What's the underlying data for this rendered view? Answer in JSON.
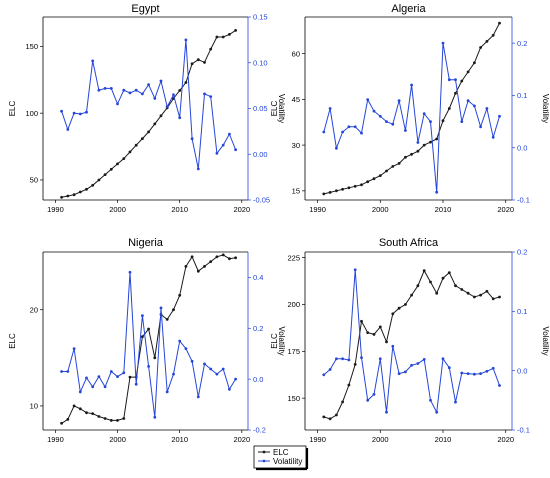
{
  "colors": {
    "elc": "#1a1a1a",
    "volatility": "#2646d9",
    "axis": "#000000"
  },
  "legend": {
    "position": "bottom-center",
    "items": [
      {
        "label": "ELC",
        "color": "#1a1a1a"
      },
      {
        "label": "Volatility",
        "color": "#2646d9"
      }
    ]
  },
  "chart_data": [
    {
      "type": "line",
      "title": "Egypt",
      "ylabel": "ELC",
      "y2label": "Volatility",
      "xlim": [
        1988,
        2021
      ],
      "xticks": [
        1990,
        2000,
        2010,
        2020
      ],
      "ylim": [
        35,
        172
      ],
      "yticks": [
        50,
        100,
        150
      ],
      "y2lim": [
        -0.05,
        0.15
      ],
      "y2ticks": [
        -0.05,
        0.0,
        0.05,
        0.1,
        0.15
      ],
      "y2ticklabels": [
        "-0.05",
        "0.00",
        "0.05",
        "0.10",
        "0.15"
      ],
      "x": [
        1991,
        1992,
        1993,
        1994,
        1995,
        1996,
        1997,
        1998,
        1999,
        2000,
        2001,
        2002,
        2003,
        2004,
        2005,
        2006,
        2007,
        2008,
        2009,
        2010,
        2011,
        2012,
        2013,
        2014,
        2015,
        2016,
        2017,
        2018,
        2019
      ],
      "series": [
        {
          "name": "ELC",
          "axis": "left",
          "values": [
            37,
            38,
            39,
            41,
            43,
            46,
            50,
            54,
            58,
            62,
            66,
            71,
            76,
            81,
            86,
            92,
            98,
            104,
            111,
            117,
            123,
            137,
            140,
            138,
            148,
            157,
            157,
            159,
            162
          ]
        },
        {
          "name": "Volatility",
          "axis": "right",
          "values": [
            0.047,
            0.027,
            0.045,
            0.044,
            0.046,
            0.102,
            0.07,
            0.072,
            0.072,
            0.055,
            0.07,
            0.067,
            0.07,
            0.066,
            0.076,
            0.061,
            0.08,
            0.052,
            0.065,
            0.04,
            0.125,
            0.017,
            -0.016,
            0.066,
            0.063,
            0.001,
            0.01,
            0.022,
            0.005
          ]
        }
      ]
    },
    {
      "type": "line",
      "title": "Algeria",
      "ylabel": "ELC",
      "y2label": "Volatility",
      "xlim": [
        1988,
        2021
      ],
      "xticks": [
        1990,
        2000,
        2010,
        2020
      ],
      "ylim": [
        12,
        72
      ],
      "yticks": [
        15,
        30,
        45,
        60
      ],
      "y2lim": [
        -0.1,
        0.25
      ],
      "y2ticks": [
        -0.1,
        0.0,
        0.1,
        0.2
      ],
      "y2ticklabels": [
        "-0.1",
        "0.0",
        "0.1",
        "0.2"
      ],
      "x": [
        1991,
        1992,
        1993,
        1994,
        1995,
        1996,
        1997,
        1998,
        1999,
        2000,
        2001,
        2002,
        2003,
        2004,
        2005,
        2006,
        2007,
        2008,
        2009,
        2010,
        2011,
        2012,
        2013,
        2014,
        2015,
        2016,
        2017,
        2018,
        2019
      ],
      "series": [
        {
          "name": "ELC",
          "axis": "left",
          "values": [
            14,
            14.5,
            15,
            15.5,
            16,
            16.5,
            17,
            18,
            19,
            20,
            21.5,
            23,
            24,
            26,
            27,
            28,
            30,
            31,
            32,
            38,
            42,
            47,
            51,
            54,
            57,
            62,
            64,
            66,
            70
          ]
        },
        {
          "name": "Volatility",
          "axis": "right",
          "values": [
            0.03,
            0.075,
            -0.001,
            0.03,
            0.04,
            0.04,
            0.028,
            0.092,
            0.07,
            0.06,
            0.05,
            0.045,
            0.09,
            0.033,
            0.12,
            0.01,
            0.065,
            0.05,
            -0.085,
            0.2,
            0.13,
            0.13,
            0.05,
            0.09,
            0.08,
            0.04,
            0.075,
            0.02,
            0.06
          ]
        }
      ]
    },
    {
      "type": "line",
      "title": "Nigeria",
      "ylabel": "ELC",
      "y2label": "Volatility",
      "xlim": [
        1988,
        2021
      ],
      "xticks": [
        1990,
        2000,
        2010,
        2020
      ],
      "ylim": [
        7.5,
        26
      ],
      "yticks": [
        10,
        20
      ],
      "y2lim": [
        -0.2,
        0.5
      ],
      "y2ticks": [
        -0.2,
        0.0,
        0.2,
        0.4
      ],
      "y2ticklabels": [
        "-0.2",
        "0.0",
        "0.2",
        "0.4"
      ],
      "x": [
        1991,
        1992,
        1993,
        1994,
        1995,
        1996,
        1997,
        1998,
        1999,
        2000,
        2001,
        2002,
        2003,
        2004,
        2005,
        2006,
        2007,
        2008,
        2009,
        2010,
        2011,
        2012,
        2013,
        2014,
        2015,
        2016,
        2017,
        2018,
        2019
      ],
      "series": [
        {
          "name": "ELC",
          "axis": "left",
          "values": [
            8.2,
            8.6,
            10,
            9.7,
            9.3,
            9.2,
            8.9,
            8.7,
            8.5,
            8.5,
            8.7,
            13,
            13,
            17.2,
            18,
            15,
            19.5,
            19,
            20,
            21.5,
            24.5,
            25.5,
            24,
            24.5,
            25,
            25.5,
            25.7,
            25.3,
            25.4
          ]
        },
        {
          "name": "Volatility",
          "axis": "right",
          "values": [
            0.03,
            0.03,
            0.12,
            -0.05,
            0.005,
            -0.03,
            0.01,
            -0.03,
            0.03,
            0.01,
            0.025,
            0.42,
            -0.02,
            0.25,
            0.05,
            -0.15,
            0.28,
            -0.05,
            0.02,
            0.15,
            0.12,
            0.07,
            -0.07,
            0.06,
            0.04,
            0.02,
            0.04,
            -0.04,
            0.0
          ]
        }
      ]
    },
    {
      "type": "line",
      "title": "South Africa",
      "ylabel": "ELC",
      "y2label": "Volatility",
      "xlim": [
        1988,
        2021
      ],
      "xticks": [
        1990,
        2000,
        2010,
        2020
      ],
      "ylim": [
        133,
        228
      ],
      "yticks": [
        150,
        175,
        200,
        225
      ],
      "y2lim": [
        -0.1,
        0.2
      ],
      "y2ticks": [
        -0.1,
        0.0,
        0.1,
        0.2
      ],
      "y2ticklabels": [
        "-0.1",
        "0.0",
        "0.1",
        "0.2"
      ],
      "x": [
        1991,
        1992,
        1993,
        1994,
        1995,
        1996,
        1997,
        1998,
        1999,
        2000,
        2001,
        2002,
        2003,
        2004,
        2005,
        2006,
        2007,
        2008,
        2009,
        2010,
        2011,
        2012,
        2013,
        2014,
        2015,
        2016,
        2017,
        2018,
        2019
      ],
      "series": [
        {
          "name": "ELC",
          "axis": "left",
          "values": [
            140,
            139,
            141,
            148,
            157,
            168,
            191,
            185,
            184,
            188,
            180,
            195,
            198,
            200,
            205,
            210,
            218,
            212,
            206,
            214,
            217,
            210,
            208,
            206,
            204,
            205,
            207,
            203,
            204
          ]
        },
        {
          "name": "Volatility",
          "axis": "right",
          "values": [
            -0.007,
            0.002,
            0.02,
            0.02,
            0.018,
            0.17,
            0.022,
            -0.05,
            -0.04,
            0.02,
            -0.07,
            0.041,
            -0.005,
            -0.002,
            0.009,
            0.012,
            0.019,
            -0.05,
            -0.07,
            0.02,
            0.005,
            -0.053,
            -0.004,
            -0.005,
            -0.006,
            -0.005,
            -0.001,
            0.004,
            -0.025
          ]
        }
      ]
    }
  ]
}
